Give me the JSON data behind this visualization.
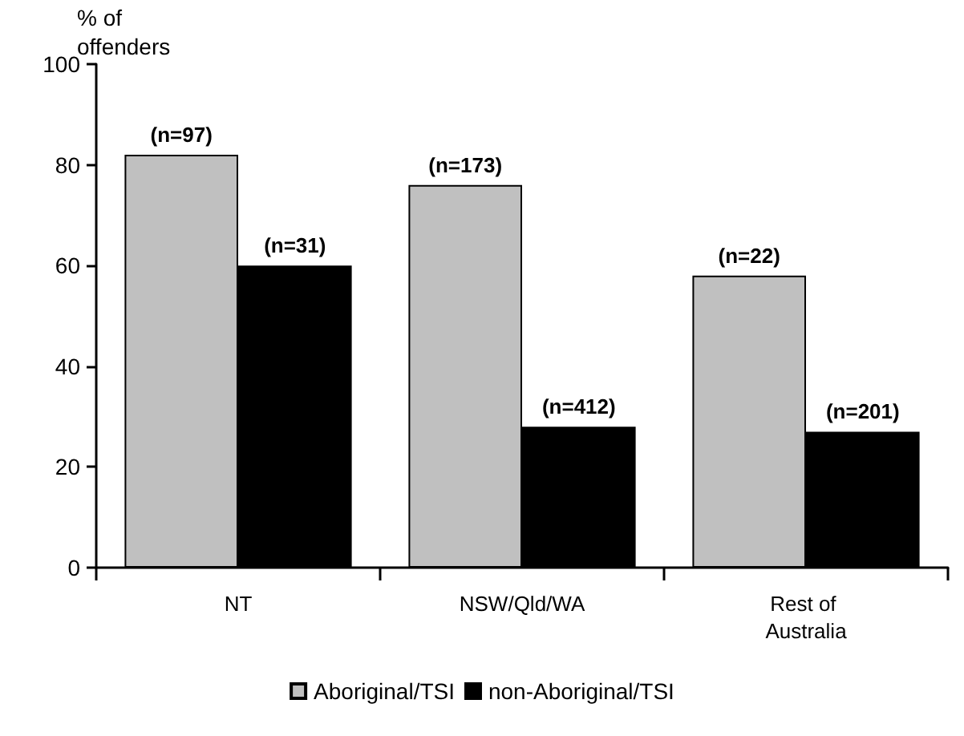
{
  "chart_data": {
    "type": "bar",
    "ylabel": "% of offenders",
    "categories": [
      "NT",
      "NSW/Qld/WA",
      "Rest of Australia"
    ],
    "series": [
      {
        "name": "Aboriginal/TSI",
        "color": "#c0c0c0",
        "values": [
          82,
          76,
          58
        ]
      },
      {
        "name": "non-Aboriginal/TSI",
        "color": "#000000",
        "values": [
          60,
          28,
          27
        ]
      }
    ],
    "annotations": [
      {
        "text": "(n=97)",
        "x": "NT",
        "y": 82
      },
      {
        "text": "(n=31)",
        "x": "NT",
        "y": 60
      },
      {
        "text": "(n=173)",
        "x": "NSW/Qld/WA",
        "y": 76
      },
      {
        "text": "(n=412)",
        "x": "NSW/Qld/WA",
        "y": 28
      },
      {
        "text": "(n=22)",
        "x": "Rest of Australia",
        "y": 58
      },
      {
        "text": "(n=201)",
        "x": "Rest of Australia",
        "y": 27
      }
    ],
    "ylim": [
      0,
      100
    ],
    "yticks": [
      0,
      20,
      40,
      60,
      80,
      100
    ],
    "grid": false,
    "legend": "bottom"
  }
}
